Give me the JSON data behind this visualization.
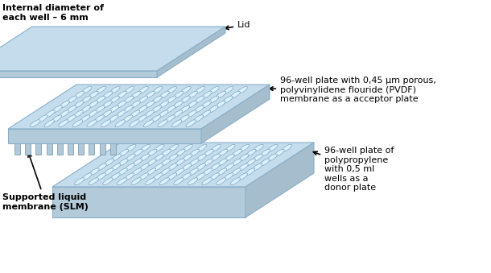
{
  "background_color": "#ffffff",
  "plate_fill": "#c5dced",
  "plate_edge": "#8aafc8",
  "plate_front_dark": "#a8c4d8",
  "plate_right_dark": "#9ab8cc",
  "well_fill": "#ddf0ff",
  "well_edge": "#7aaabe",
  "text_color": "#000000",
  "arrow_color": "#000000",
  "slm_fill": "#b0c8d8",
  "slm_edge": "#7090a8",
  "label_internal": "Internal diameter of\neach well – 6 mm",
  "label_lid": "Lid",
  "label_pvdf": "96-well plate with 0,45 μm porous,\npolyvinylidene flouride (PVDF)\nmembrane as a acceptor plate",
  "label_donor": "96-well plate of\npolypropylene\nwith 0,5 ml\nwells as a\ndonor plate",
  "label_slm": "Supported liquid\nmembrane (SLM)",
  "fig_width": 6.1,
  "fig_height": 3.39,
  "dpi": 100
}
